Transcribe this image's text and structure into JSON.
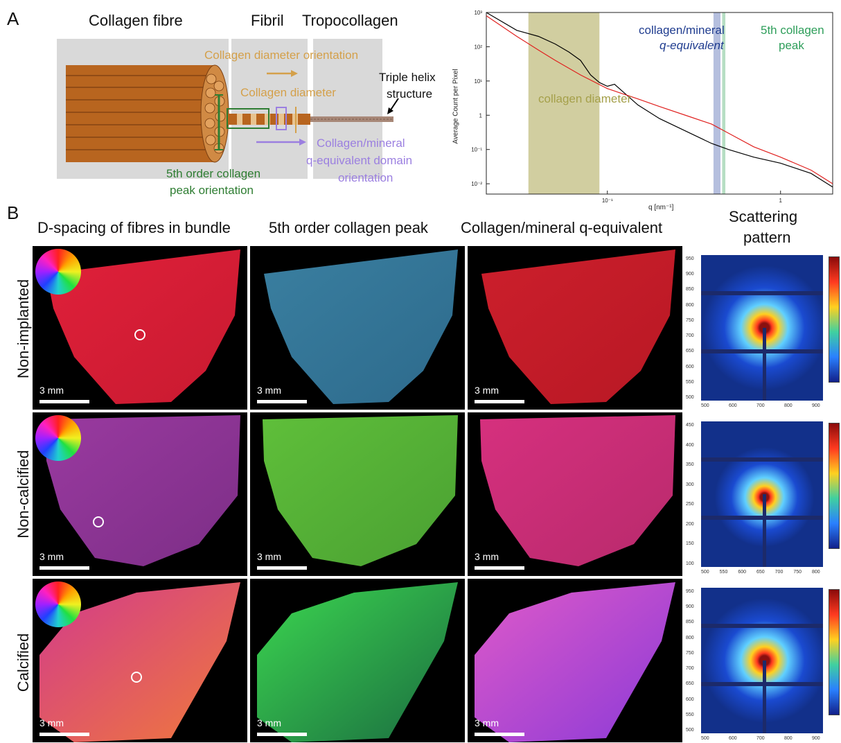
{
  "panelA": {
    "letter": "A",
    "diagram": {
      "header_fibre": "Collagen fibre",
      "header_fibril": "Fibril",
      "header_tropo": "Tropocollagen",
      "label_diam_orient": "Collagen diameter orientation",
      "label_diameter": "Collagen  diameter",
      "label_triple_1": "Triple helix",
      "label_triple_2": "structure",
      "label_qeq_1": "Collagen/mineral",
      "label_qeq_2": "q-equivalent domain",
      "label_qeq_3": "orientation",
      "label_5th_1": "5th order collagen",
      "label_5th_2": "peak orientation",
      "colors": {
        "orange": "#d4a04a",
        "purple": "#9b7fe0",
        "green": "#2e7d32",
        "wood": "#b8651f"
      }
    },
    "chart": {
      "ylabel": "Average Count per Pixel",
      "xlabel": "q [nm⁻¹]",
      "yticks": [
        "10³",
        "10²",
        "10¹",
        "1",
        "10⁻¹",
        "10⁻²"
      ],
      "xticks": [
        "10⁻¹",
        "1"
      ],
      "band_collagen_diameter": "collagen diameter",
      "band_qeq_1": "collagen/mineral",
      "band_qeq_2": "q-equivalent",
      "band_5th_1": "5th collagen",
      "band_5th_2": "peak"
    }
  },
  "panelB": {
    "letter": "B",
    "col_headers": [
      "D-spacing of fibres in bundle",
      "5th order collagen peak",
      "Collagen/mineral q-equivalent"
    ],
    "scatter_header_1": "Scattering",
    "scatter_header_2": "pattern",
    "row_labels": [
      "Non-implanted",
      "Non-calcified",
      "Calcified"
    ],
    "scalebar_label": "3 mm",
    "scatter_axes": [
      {
        "yticks": [
          "950",
          "900",
          "850",
          "800",
          "750",
          "700",
          "650",
          "600",
          "550",
          "500"
        ],
        "xticks": [
          "500",
          "600",
          "700",
          "800",
          "900"
        ]
      },
      {
        "yticks": [
          "450",
          "400",
          "350",
          "300",
          "250",
          "200",
          "150",
          "100"
        ],
        "xticks": [
          "500",
          "550",
          "600",
          "650",
          "700",
          "750",
          "800"
        ]
      },
      {
        "yticks": [
          "950",
          "900",
          "850",
          "800",
          "750",
          "700",
          "650",
          "600",
          "550",
          "500"
        ],
        "xticks": [
          "500",
          "600",
          "700",
          "800",
          "900"
        ]
      }
    ]
  },
  "chart_data": {
    "type": "line",
    "xlabel": "q [nm⁻¹]",
    "ylabel": "Average Count per Pixel",
    "xscale": "log",
    "yscale": "log",
    "xlim": [
      0.02,
      2
    ],
    "ylim": [
      0.005,
      1000
    ],
    "series": [
      {
        "x": [
          0.02,
          0.03,
          0.04,
          0.05,
          0.06,
          0.07,
          0.08,
          0.09,
          0.1,
          0.11,
          0.15,
          0.2,
          0.3,
          0.4,
          0.5,
          0.7,
          1.0,
          1.5,
          2.0
        ],
        "y": [
          1000,
          300,
          200,
          120,
          70,
          40,
          15,
          9,
          7,
          8,
          2,
          0.8,
          0.3,
          0.15,
          0.1,
          0.06,
          0.04,
          0.02,
          0.008
        ]
      },
      {
        "x": [
          0.02,
          0.03,
          0.04,
          0.05,
          0.07,
          0.1,
          0.15,
          0.2,
          0.3,
          0.4,
          0.5,
          0.7,
          1.0,
          1.5,
          2.0
        ],
        "y": [
          800,
          200,
          80,
          40,
          15,
          6,
          3,
          1.8,
          0.9,
          0.55,
          0.3,
          0.12,
          0.06,
          0.025,
          0.01
        ]
      }
    ],
    "bands": [
      {
        "label": "collagen diameter",
        "x": [
          0.035,
          0.09
        ],
        "color": "#c9c68f"
      },
      {
        "label": "collagen/mineral q-equivalent",
        "x": [
          0.41,
          0.45
        ],
        "color": "#a8b4d8"
      },
      {
        "label": "5th collagen peak",
        "x": [
          0.46,
          0.48
        ],
        "color": "#a9d8b8"
      }
    ]
  }
}
